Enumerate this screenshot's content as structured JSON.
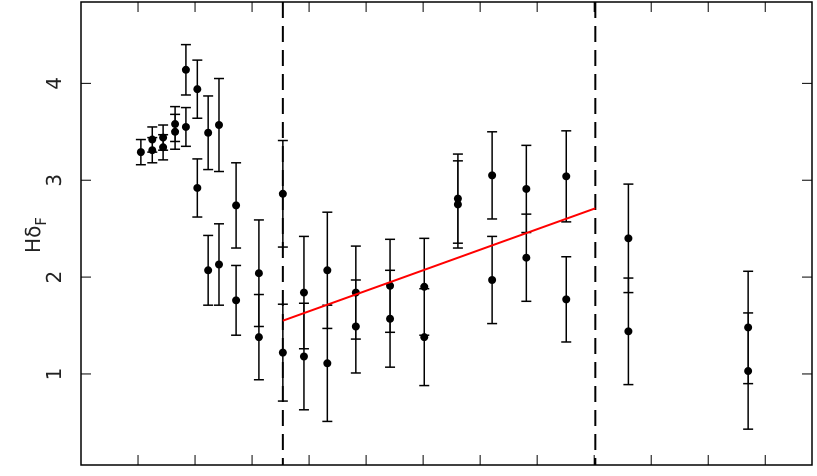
{
  "chart_data": {
    "type": "scatter",
    "y_label": {
      "main": "Hδ",
      "sub": "F"
    },
    "xlim": [
      0,
      12.82
    ],
    "xticks": [
      1,
      2,
      3,
      4,
      5,
      6,
      7,
      8,
      9,
      10,
      11,
      12
    ],
    "ylim": [
      0.06,
      4.84
    ],
    "yticks": [
      1,
      2,
      3,
      4
    ],
    "series": [
      {
        "color": "#000000",
        "x": [
          1.05,
          1.25,
          1.25,
          1.44,
          1.44,
          1.65,
          1.65,
          1.84,
          1.84,
          2.04,
          2.04,
          2.23,
          2.23,
          2.42,
          2.42,
          2.72,
          2.72,
          3.12,
          3.12,
          3.54,
          3.54,
          3.91,
          3.91,
          4.32,
          4.32,
          4.82,
          4.82,
          5.42,
          5.42,
          6.02,
          6.02,
          6.61,
          6.61,
          7.21,
          7.21,
          7.81,
          7.81,
          8.51,
          8.51,
          9.6,
          9.6,
          11.7,
          11.7
        ],
        "values": [
          3.29,
          3.42,
          3.31,
          3.44,
          3.34,
          3.58,
          3.5,
          4.14,
          3.55,
          3.94,
          2.92,
          3.49,
          2.07,
          3.57,
          2.13,
          2.74,
          1.76,
          2.04,
          1.38,
          2.86,
          1.22,
          1.84,
          1.18,
          2.07,
          1.11,
          1.84,
          1.49,
          1.91,
          1.57,
          1.9,
          1.38,
          2.81,
          2.75,
          3.05,
          1.97,
          2.91,
          2.2,
          3.04,
          1.77,
          2.4,
          1.44,
          1.48,
          1.03
        ],
        "errors": [
          0.13,
          0.13,
          0.13,
          0.13,
          0.13,
          0.18,
          0.18,
          0.26,
          0.2,
          0.3,
          0.3,
          0.38,
          0.36,
          0.48,
          0.42,
          0.44,
          0.36,
          0.55,
          0.44,
          0.55,
          0.5,
          0.58,
          0.55,
          0.6,
          0.6,
          0.48,
          0.48,
          0.48,
          0.5,
          0.5,
          0.5,
          0.46,
          0.45,
          0.45,
          0.45,
          0.45,
          0.45,
          0.47,
          0.44,
          0.56,
          0.55,
          0.58,
          0.6
        ]
      }
    ],
    "fit": {
      "color": "#ff0000",
      "x": [
        3.54,
        9.02
      ],
      "values": [
        1.55,
        2.71
      ]
    },
    "vlines": [
      3.54,
      9.02
    ]
  }
}
